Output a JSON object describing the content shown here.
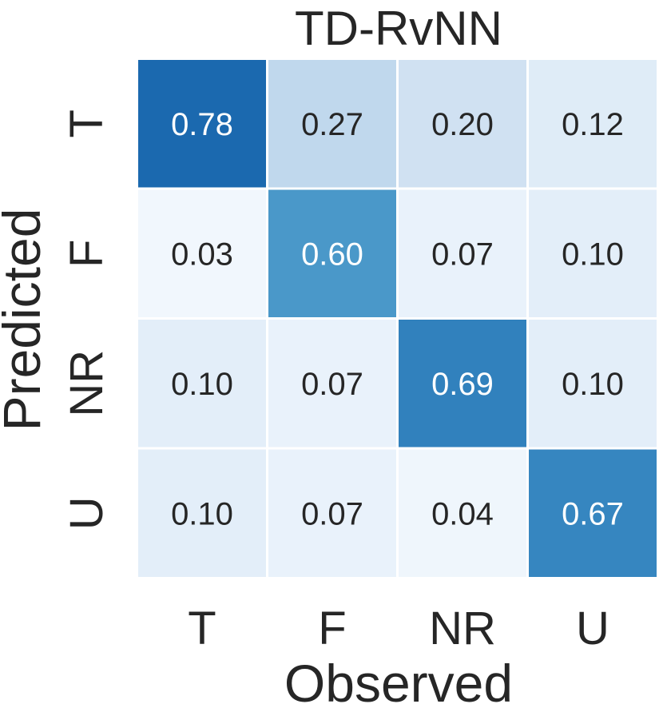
{
  "chart_data": {
    "type": "heatmap",
    "title": "TD-RvNN",
    "xlabel": "Observed",
    "ylabel": "Predicted",
    "x_categories": [
      "T",
      "F",
      "NR",
      "U"
    ],
    "y_categories": [
      "T",
      "F",
      "NR",
      "U"
    ],
    "values": [
      [
        0.78,
        0.27,
        0.2,
        0.12
      ],
      [
        0.03,
        0.6,
        0.07,
        0.1
      ],
      [
        0.1,
        0.07,
        0.69,
        0.1
      ],
      [
        0.1,
        0.07,
        0.04,
        0.67
      ]
    ],
    "value_format": "2dp",
    "colormap": "Blues",
    "color_low": "#f0f6fc",
    "color_high": "#1a68ae",
    "annotation_color_dark": "#262626",
    "annotation_color_light": "#ffffff",
    "grid_color": "#ffffff",
    "colorbar": false
  }
}
